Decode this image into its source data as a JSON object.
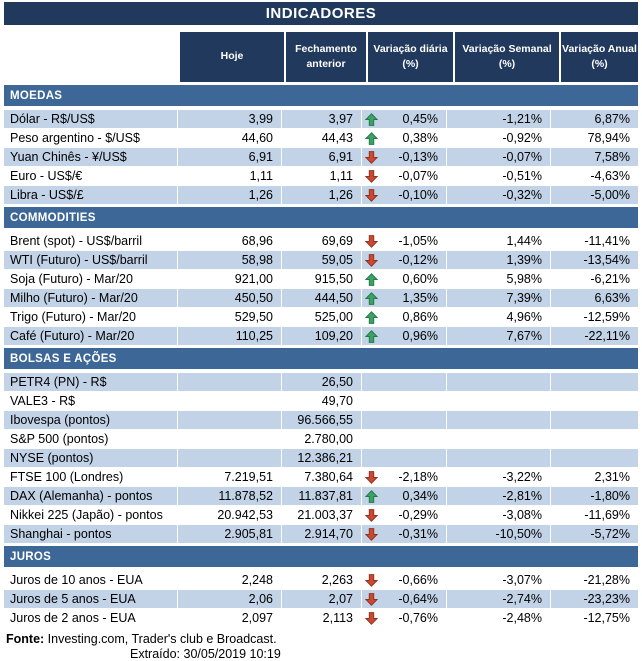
{
  "chart_data": {
    "type": "table",
    "title": "INDICADORES",
    "columns": [
      {
        "line1": "Hoje",
        "line2": ""
      },
      {
        "line1": "Fechamento",
        "line2": "anterior"
      },
      {
        "line1": "Variação diária",
        "line2": "(%)"
      },
      {
        "line1": "Variação Semanal",
        "line2": "(%)"
      },
      {
        "line1": "Variação Anual",
        "line2": "(%)"
      }
    ],
    "sections": [
      {
        "name": "MOEDAS",
        "rows": [
          {
            "label": "Dólar - R$/US$",
            "hoje": "3,99",
            "fech": "3,97",
            "arrow": "up",
            "dia": "0,45%",
            "sem": "-1,21%",
            "ano": "6,87%"
          },
          {
            "label": "Peso argentino - $/US$",
            "hoje": "44,60",
            "fech": "44,43",
            "arrow": "up",
            "dia": "0,38%",
            "sem": "-0,92%",
            "ano": "78,94%"
          },
          {
            "label": "Yuan Chinês - ¥/US$",
            "hoje": "6,91",
            "fech": "6,91",
            "arrow": "down",
            "dia": "-0,13%",
            "sem": "-0,07%",
            "ano": "7,58%"
          },
          {
            "label": "Euro - US$/€",
            "hoje": "1,11",
            "fech": "1,11",
            "arrow": "down",
            "dia": "-0,07%",
            "sem": "-0,51%",
            "ano": "-4,63%"
          },
          {
            "label": "Libra - US$/£",
            "hoje": "1,26",
            "fech": "1,26",
            "arrow": "down",
            "dia": "-0,10%",
            "sem": "-0,32%",
            "ano": "-5,00%"
          }
        ]
      },
      {
        "name": "COMMODITIES",
        "rows": [
          {
            "label": "Brent (spot) - US$/barril",
            "hoje": "68,96",
            "fech": "69,69",
            "arrow": "down",
            "dia": "-1,05%",
            "sem": "1,44%",
            "ano": "-11,41%"
          },
          {
            "label": "WTI (Futuro) - US$/barril",
            "hoje": "58,98",
            "fech": "59,05",
            "arrow": "down",
            "dia": "-0,12%",
            "sem": "1,39%",
            "ano": "-13,54%"
          },
          {
            "label": "Soja (Futuro) - Mar/20",
            "hoje": "921,00",
            "fech": "915,50",
            "arrow": "up",
            "dia": "0,60%",
            "sem": "5,98%",
            "ano": "-6,21%"
          },
          {
            "label": "Milho (Futuro) - Mar/20",
            "hoje": "450,50",
            "fech": "444,50",
            "arrow": "up",
            "dia": "1,35%",
            "sem": "7,39%",
            "ano": "6,63%"
          },
          {
            "label": "Trigo (Futuro) - Mar/20",
            "hoje": "529,50",
            "fech": "525,00",
            "arrow": "up",
            "dia": "0,86%",
            "sem": "4,96%",
            "ano": "-12,59%"
          },
          {
            "label": "Café (Futuro) - Mar/20",
            "hoje": "110,25",
            "fech": "109,20",
            "arrow": "up",
            "dia": "0,96%",
            "sem": "7,67%",
            "ano": "-22,11%"
          }
        ]
      },
      {
        "name": "BOLSAS E AÇÕES",
        "rows": [
          {
            "label": "PETR4 (PN) - R$",
            "hoje": "",
            "fech": "26,50",
            "dia": "",
            "sem": "",
            "ano": ""
          },
          {
            "label": "VALE3 - R$",
            "hoje": "",
            "fech": "49,70",
            "dia": "",
            "sem": "",
            "ano": ""
          },
          {
            "label": "Ibovespa (pontos)",
            "hoje": "",
            "fech": "96.566,55",
            "dia": "",
            "sem": "",
            "ano": ""
          },
          {
            "label": "S&P 500 (pontos)",
            "hoje": "",
            "fech": "2.780,00",
            "dia": "",
            "sem": "",
            "ano": ""
          },
          {
            "label": "NYSE (pontos)",
            "hoje": "",
            "fech": "12.386,21",
            "dia": "",
            "sem": "",
            "ano": ""
          },
          {
            "label": "FTSE 100 (Londres)",
            "hoje": "7.219,51",
            "fech": "7.380,64",
            "arrow": "down",
            "dia": "-2,18%",
            "sem": "-3,22%",
            "ano": "2,31%"
          },
          {
            "label": "DAX (Alemanha) - pontos",
            "hoje": "11.878,52",
            "fech": "11.837,81",
            "arrow": "up",
            "dia": "0,34%",
            "sem": "-2,81%",
            "ano": "-1,80%"
          },
          {
            "label": "Nikkei 225 (Japão) - pontos",
            "hoje": "20.942,53",
            "fech": "21.003,37",
            "arrow": "down",
            "dia": "-0,29%",
            "sem": "-3,08%",
            "ano": "-11,69%"
          },
          {
            "label": "Shanghai - pontos",
            "hoje": "2.905,81",
            "fech": "2.914,70",
            "arrow": "down",
            "dia": "-0,31%",
            "sem": "-10,50%",
            "ano": "-5,72%"
          }
        ]
      },
      {
        "name": "JUROS",
        "rows": [
          {
            "label": "Juros de 10 anos - EUA",
            "hoje": "2,248",
            "fech": "2,263",
            "arrow": "down",
            "dia": "-0,66%",
            "sem": "-3,07%",
            "ano": "-21,28%"
          },
          {
            "label": "Juros de 5 anos - EUA",
            "hoje": "2,06",
            "fech": "2,07",
            "arrow": "down",
            "dia": "-0,64%",
            "sem": "-2,74%",
            "ano": "-23,23%"
          },
          {
            "label": "Juros de 2 anos - EUA",
            "hoje": "2,097",
            "fech": "2,113",
            "arrow": "down",
            "dia": "-0,76%",
            "sem": "-2,48%",
            "ano": "-12,75%"
          }
        ]
      }
    ],
    "footer": {
      "fonte_label": "Fonte:",
      "fonte_text": " Investing.com, Trader's club e Broadcast.",
      "extraido": "Extraído: 30/05/2019 10:19"
    }
  },
  "colors": {
    "navy": "#21395C",
    "section_blue": "#3D6796",
    "row_blue": "#C2D3E8",
    "up_green": "#3FA068",
    "down_red": "#C94A33"
  }
}
